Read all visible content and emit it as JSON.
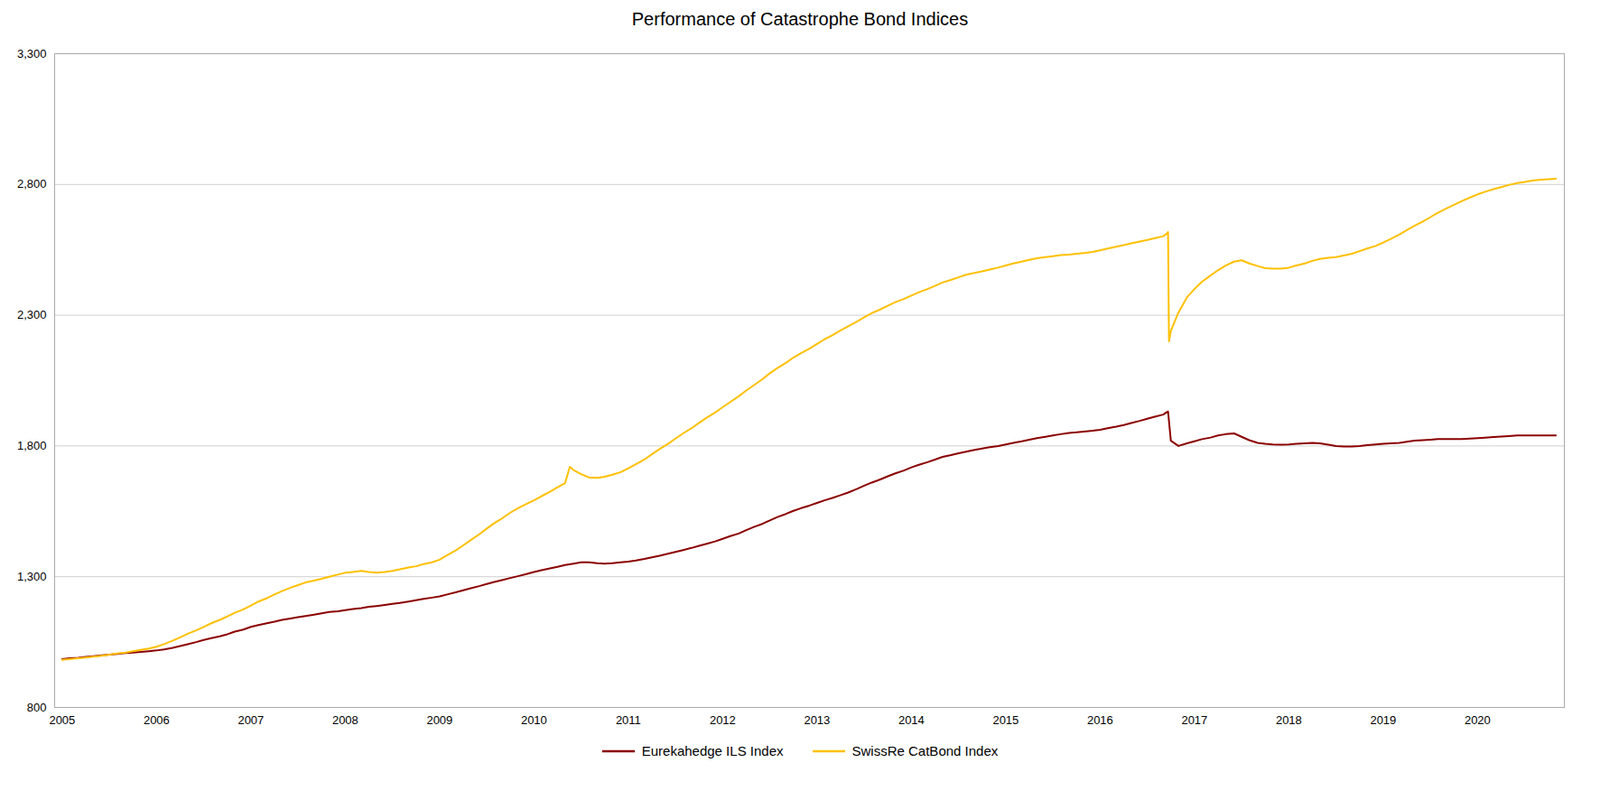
{
  "chart_data": {
    "type": "line",
    "title": "Performance of Catastrophe Bond Indices",
    "xlim": [
      2004.92,
      2020.92
    ],
    "xticks": [
      2005,
      2006,
      2007,
      2008,
      2009,
      2010,
      2011,
      2012,
      2013,
      2014,
      2015,
      2016,
      2017,
      2018,
      2019,
      2020
    ],
    "ylim": [
      800,
      3300
    ],
    "yticks": [
      800,
      {
        "value": 1300,
        "label": "1,300"
      },
      {
        "value": 1800,
        "label": "1,800"
      },
      {
        "value": 2300,
        "label": "2,300"
      },
      {
        "value": 2800,
        "label": "2,800"
      },
      {
        "value": 3300,
        "label": "3,300"
      }
    ],
    "grid": "y",
    "legend": "bottom",
    "series": [
      {
        "name": "Eurekahedge ILS Index",
        "color": "#8B0000",
        "x": [
          2005,
          2005.08,
          2005.17,
          2005.25,
          2005.33,
          2005.42,
          2005.5,
          2005.58,
          2005.67,
          2005.75,
          2005.83,
          2005.92,
          2006,
          2006.08,
          2006.17,
          2006.25,
          2006.33,
          2006.42,
          2006.5,
          2006.58,
          2006.67,
          2006.75,
          2006.83,
          2006.92,
          2007,
          2007.08,
          2007.17,
          2007.25,
          2007.33,
          2007.42,
          2007.5,
          2007.58,
          2007.67,
          2007.75,
          2007.83,
          2007.92,
          2008,
          2008.08,
          2008.17,
          2008.25,
          2008.33,
          2008.42,
          2008.5,
          2008.58,
          2008.67,
          2008.75,
          2008.83,
          2008.92,
          2009,
          2009.08,
          2009.17,
          2009.25,
          2009.33,
          2009.42,
          2009.5,
          2009.58,
          2009.67,
          2009.75,
          2009.83,
          2009.92,
          2010,
          2010.08,
          2010.17,
          2010.25,
          2010.33,
          2010.42,
          2010.5,
          2010.58,
          2010.67,
          2010.75,
          2010.83,
          2010.92,
          2011,
          2011.08,
          2011.17,
          2011.25,
          2011.33,
          2011.42,
          2011.5,
          2011.58,
          2011.67,
          2011.75,
          2011.83,
          2011.92,
          2012,
          2012.08,
          2012.17,
          2012.25,
          2012.33,
          2012.42,
          2012.5,
          2012.58,
          2012.67,
          2012.75,
          2012.83,
          2012.92,
          2013,
          2013.08,
          2013.17,
          2013.25,
          2013.33,
          2013.42,
          2013.5,
          2013.58,
          2013.67,
          2013.75,
          2013.83,
          2013.92,
          2014,
          2014.08,
          2014.17,
          2014.25,
          2014.33,
          2014.42,
          2014.5,
          2014.58,
          2014.67,
          2014.75,
          2014.83,
          2014.92,
          2015,
          2015.08,
          2015.17,
          2015.25,
          2015.33,
          2015.42,
          2015.5,
          2015.58,
          2015.67,
          2015.75,
          2015.83,
          2015.92,
          2016,
          2016.08,
          2016.17,
          2016.25,
          2016.33,
          2016.42,
          2016.5,
          2016.58,
          2016.67,
          2016.7,
          2016.72,
          2016.75,
          2016.83,
          2016.92,
          2017,
          2017.08,
          2017.17,
          2017.25,
          2017.33,
          2017.42,
          2017.5,
          2017.58,
          2017.67,
          2017.75,
          2017.83,
          2017.92,
          2018,
          2018.08,
          2018.17,
          2018.25,
          2018.33,
          2018.42,
          2018.5,
          2018.58,
          2018.67,
          2018.75,
          2018.83,
          2018.92,
          2019,
          2019.08,
          2019.17,
          2019.25,
          2019.33,
          2019.42,
          2019.5,
          2019.58,
          2019.67,
          2019.75,
          2019.83,
          2019.92,
          2020,
          2020.08,
          2020.17,
          2020.25,
          2020.33,
          2020.42,
          2020.5,
          2020.58,
          2020.67,
          2020.75,
          2020.83
        ],
        "values": [
          985,
          988,
          990,
          993,
          996,
          999,
          1002,
          1005,
          1008,
          1010,
          1012,
          1015,
          1018,
          1022,
          1028,
          1035,
          1042,
          1050,
          1058,
          1065,
          1072,
          1080,
          1090,
          1098,
          1108,
          1115,
          1122,
          1128,
          1135,
          1140,
          1145,
          1150,
          1155,
          1160,
          1165,
          1168,
          1172,
          1176,
          1180,
          1185,
          1188,
          1192,
          1196,
          1200,
          1205,
          1210,
          1215,
          1220,
          1225,
          1232,
          1240,
          1248,
          1256,
          1264,
          1272,
          1280,
          1288,
          1295,
          1302,
          1310,
          1318,
          1325,
          1332,
          1338,
          1345,
          1350,
          1355,
          1355,
          1352,
          1350,
          1352,
          1355,
          1358,
          1362,
          1368,
          1374,
          1380,
          1388,
          1395,
          1402,
          1410,
          1418,
          1426,
          1435,
          1445,
          1455,
          1465,
          1478,
          1490,
          1502,
          1515,
          1528,
          1540,
          1552,
          1562,
          1572,
          1582,
          1592,
          1602,
          1612,
          1622,
          1635,
          1648,
          1660,
          1672,
          1684,
          1695,
          1706,
          1718,
          1728,
          1738,
          1748,
          1758,
          1765,
          1772,
          1778,
          1785,
          1790,
          1795,
          1800,
          1806,
          1812,
          1818,
          1824,
          1830,
          1835,
          1840,
          1845,
          1850,
          1852,
          1855,
          1858,
          1862,
          1868,
          1874,
          1880,
          1888,
          1896,
          1904,
          1912,
          1920,
          1928,
          1932,
          1820,
          1800,
          1810,
          1818,
          1826,
          1832,
          1840,
          1845,
          1848,
          1835,
          1822,
          1812,
          1808,
          1806,
          1805,
          1806,
          1808,
          1810,
          1812,
          1810,
          1805,
          1800,
          1798,
          1798,
          1800,
          1803,
          1806,
          1808,
          1810,
          1812,
          1816,
          1820,
          1822,
          1824,
          1826,
          1826,
          1826,
          1826,
          1828,
          1830,
          1832,
          1834,
          1836,
          1838,
          1840,
          1840,
          1840,
          1840,
          1840,
          1840
        ]
      },
      {
        "name": "SwissRe CatBond Index",
        "color": "#FFC000",
        "x": [
          2005,
          2005.08,
          2005.17,
          2005.25,
          2005.33,
          2005.42,
          2005.5,
          2005.58,
          2005.67,
          2005.75,
          2005.83,
          2005.92,
          2006,
          2006.08,
          2006.17,
          2006.25,
          2006.33,
          2006.42,
          2006.5,
          2006.58,
          2006.67,
          2006.75,
          2006.83,
          2006.92,
          2007,
          2007.08,
          2007.17,
          2007.25,
          2007.33,
          2007.42,
          2007.5,
          2007.58,
          2007.67,
          2007.75,
          2007.83,
          2007.92,
          2008,
          2008.08,
          2008.17,
          2008.25,
          2008.33,
          2008.42,
          2008.5,
          2008.58,
          2008.67,
          2008.75,
          2008.83,
          2008.92,
          2009,
          2009.08,
          2009.17,
          2009.25,
          2009.33,
          2009.42,
          2009.5,
          2009.58,
          2009.67,
          2009.75,
          2009.83,
          2009.92,
          2010,
          2010.08,
          2010.17,
          2010.25,
          2010.33,
          2010.38,
          2010.42,
          2010.5,
          2010.58,
          2010.67,
          2010.75,
          2010.83,
          2010.92,
          2011,
          2011.08,
          2011.17,
          2011.25,
          2011.33,
          2011.42,
          2011.5,
          2011.58,
          2011.67,
          2011.75,
          2011.83,
          2011.92,
          2012,
          2012.08,
          2012.17,
          2012.25,
          2012.33,
          2012.42,
          2012.5,
          2012.58,
          2012.67,
          2012.75,
          2012.83,
          2012.92,
          2013,
          2013.08,
          2013.17,
          2013.25,
          2013.33,
          2013.42,
          2013.5,
          2013.58,
          2013.67,
          2013.75,
          2013.83,
          2013.92,
          2014,
          2014.08,
          2014.17,
          2014.25,
          2014.33,
          2014.42,
          2014.5,
          2014.58,
          2014.67,
          2014.75,
          2014.83,
          2014.92,
          2015,
          2015.08,
          2015.17,
          2015.25,
          2015.33,
          2015.42,
          2015.5,
          2015.58,
          2015.67,
          2015.75,
          2015.83,
          2015.92,
          2016,
          2016.08,
          2016.17,
          2016.25,
          2016.33,
          2016.42,
          2016.5,
          2016.58,
          2016.67,
          2016.7,
          2016.72,
          2016.73,
          2016.75,
          2016.83,
          2016.92,
          2017,
          2017.08,
          2017.17,
          2017.25,
          2017.33,
          2017.42,
          2017.5,
          2017.58,
          2017.67,
          2017.75,
          2017.83,
          2017.92,
          2018,
          2018.08,
          2018.17,
          2018.25,
          2018.33,
          2018.42,
          2018.5,
          2018.58,
          2018.67,
          2018.75,
          2018.83,
          2018.92,
          2019,
          2019.08,
          2019.17,
          2019.25,
          2019.33,
          2019.42,
          2019.5,
          2019.58,
          2019.67,
          2019.75,
          2019.83,
          2019.92,
          2020,
          2020.08,
          2020.17,
          2020.25,
          2020.33,
          2020.42,
          2020.5,
          2020.58,
          2020.67,
          2020.75,
          2020.83
        ],
        "values": [
          982,
          985,
          988,
          991,
          994,
          998,
          1002,
          1006,
          1010,
          1015,
          1020,
          1025,
          1032,
          1042,
          1055,
          1068,
          1082,
          1095,
          1108,
          1122,
          1135,
          1148,
          1162,
          1175,
          1190,
          1205,
          1218,
          1232,
          1245,
          1258,
          1268,
          1278,
          1285,
          1292,
          1300,
          1308,
          1315,
          1318,
          1322,
          1318,
          1315,
          1318,
          1322,
          1328,
          1335,
          1340,
          1348,
          1355,
          1365,
          1382,
          1400,
          1420,
          1440,
          1462,
          1484,
          1505,
          1525,
          1545,
          1562,
          1578,
          1592,
          1608,
          1625,
          1642,
          1658,
          1720,
          1708,
          1692,
          1680,
          1678,
          1682,
          1690,
          1700,
          1715,
          1730,
          1748,
          1768,
          1788,
          1808,
          1828,
          1848,
          1868,
          1888,
          1908,
          1928,
          1948,
          1968,
          1990,
          2012,
          2032,
          2055,
          2078,
          2098,
          2118,
          2138,
          2155,
          2172,
          2190,
          2208,
          2225,
          2242,
          2258,
          2275,
          2292,
          2308,
          2322,
          2336,
          2350,
          2362,
          2375,
          2388,
          2400,
          2412,
          2425,
          2435,
          2445,
          2455,
          2462,
          2468,
          2475,
          2482,
          2490,
          2498,
          2505,
          2512,
          2518,
          2522,
          2526,
          2530,
          2532,
          2535,
          2538,
          2542,
          2548,
          2555,
          2562,
          2568,
          2575,
          2582,
          2588,
          2595,
          2602,
          2610,
          2618,
          2200,
          2240,
          2310,
          2368,
          2400,
          2428,
          2452,
          2472,
          2490,
          2505,
          2510,
          2498,
          2488,
          2480,
          2478,
          2478,
          2482,
          2490,
          2498,
          2508,
          2515,
          2520,
          2522,
          2528,
          2535,
          2545,
          2555,
          2565,
          2578,
          2592,
          2608,
          2625,
          2642,
          2658,
          2675,
          2692,
          2708,
          2722,
          2736,
          2750,
          2762,
          2772,
          2782,
          2790,
          2798,
          2805,
          2810,
          2815,
          2818,
          2820,
          2822
        ]
      }
    ]
  }
}
